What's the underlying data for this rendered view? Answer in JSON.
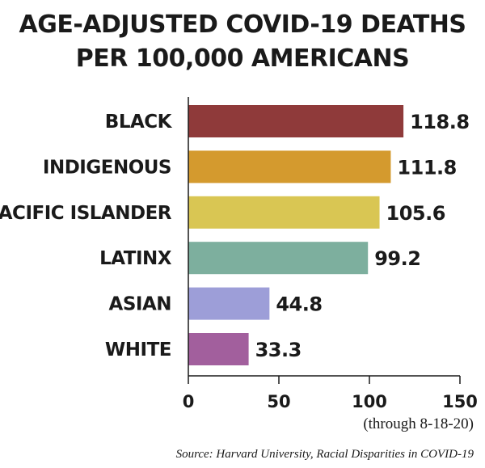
{
  "chart_data": {
    "type": "bar",
    "orientation": "horizontal",
    "title": [
      "AGE-ADJUSTED COVID-19 DEATHS",
      "PER 100,000 AMERICANS"
    ],
    "categories": [
      "BLACK",
      "INDIGENOUS",
      "PACIFIC ISLANDER",
      "LATINX",
      "ASIAN",
      "WHITE"
    ],
    "values": [
      118.8,
      111.8,
      105.6,
      99.2,
      44.8,
      33.3
    ],
    "value_labels": [
      "118.8",
      "111.8",
      "105.6",
      "99.2",
      "44.8",
      "33.3"
    ],
    "colors": [
      "#8f3a3a",
      "#d49a2e",
      "#d9c653",
      "#7daf9e",
      "#9d9ed8",
      "#a25f9d"
    ],
    "xlim": [
      0,
      150
    ],
    "xticks": [
      0,
      50,
      100,
      150
    ],
    "xtick_labels": [
      "0",
      "50",
      "100",
      "150"
    ],
    "grid": false,
    "legend": "none"
  },
  "note": "(through 8-18-20)",
  "source": "Source: Harvard University, Racial Disparities in COVID-19"
}
